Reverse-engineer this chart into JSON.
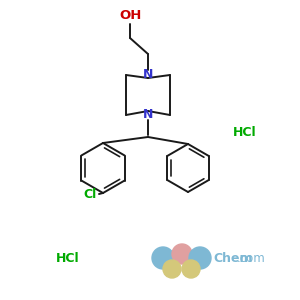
{
  "background_color": "#ffffff",
  "bond_color": "#1a1a1a",
  "nitrogen_color": "#3333cc",
  "oxygen_color": "#cc0000",
  "chlorine_color": "#00aa00",
  "hcl_color": "#00aa00",
  "oh_label": "OH",
  "n_label": "N",
  "cl_label": "Cl",
  "hcl_label1": "HCl",
  "hcl_label2": "HCl",
  "chem_label": "Chem",
  "com_label": ".com",
  "watermark_blue": "#7eb8d4",
  "watermark_pink": "#e0a0a0",
  "watermark_yellow": "#d4c87a",
  "watermark_text": "#7eb8d4"
}
